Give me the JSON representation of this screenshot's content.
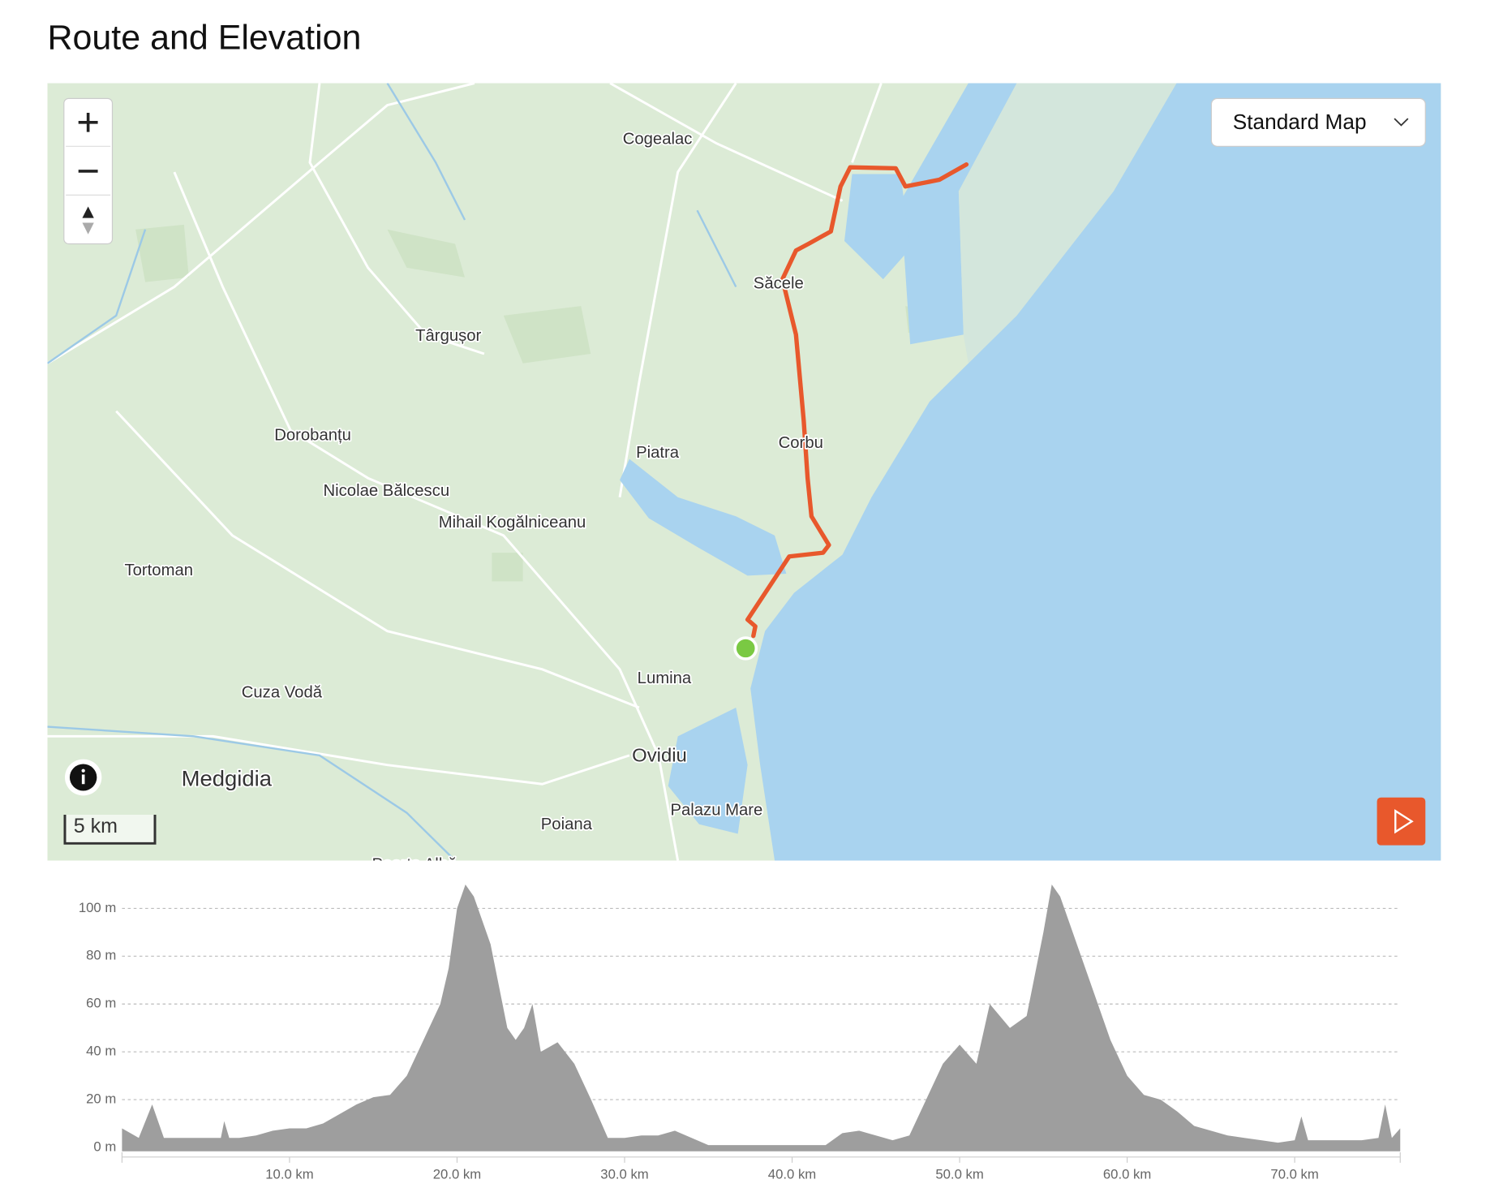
{
  "header": {
    "title": "Route and Elevation"
  },
  "map": {
    "style_selector": "Standard Map",
    "scale": "5 km",
    "places": [
      "Cogealac",
      "Săcele",
      "Târgușor",
      "Dorobanțu",
      "Piatra",
      "Corbu",
      "Nicolae Bălcescu",
      "Mihail Kogălniceanu",
      "Tortoman",
      "Lumina",
      "Cuza Vodă",
      "Ovidiu",
      "Medgidia",
      "Palazu Mare",
      "Poiana",
      "Poarta Albă"
    ]
  },
  "chart_data": {
    "type": "area",
    "color": "#9e9e9e",
    "x": [
      0,
      1,
      1.8,
      2.5,
      3,
      4,
      5,
      5.9,
      6.1,
      6.4,
      7,
      8,
      9,
      10,
      11,
      12,
      13,
      14,
      15,
      16,
      17,
      18,
      19,
      19.5,
      20,
      20.5,
      21,
      22,
      23,
      23.5,
      24,
      24.5,
      25,
      26,
      27,
      28,
      29,
      30,
      31,
      32,
      33,
      34,
      35,
      36,
      38,
      40,
      42,
      43,
      44,
      45,
      46,
      47,
      48,
      49,
      50,
      51,
      51.8,
      53,
      54,
      55,
      55.5,
      56,
      57,
      58,
      59,
      60,
      61,
      62,
      63,
      64,
      65,
      66,
      67,
      68,
      69,
      70,
      70.4,
      70.8,
      72,
      73,
      74,
      75,
      75.4,
      75.8,
      76.3
    ],
    "values": [
      8,
      4,
      18,
      4,
      4,
      4,
      4,
      4,
      11,
      4,
      4,
      5,
      7,
      8,
      8,
      10,
      14,
      18,
      21,
      22,
      30,
      45,
      60,
      75,
      100,
      110,
      105,
      85,
      50,
      45,
      50,
      60,
      40,
      44,
      35,
      20,
      4,
      4,
      5,
      5,
      7,
      4,
      1,
      1,
      1,
      1,
      1,
      6,
      7,
      5,
      3,
      5,
      20,
      35,
      43,
      35,
      60,
      50,
      55,
      90,
      110,
      105,
      85,
      65,
      45,
      30,
      22,
      20,
      15,
      9,
      7,
      5,
      4,
      3,
      2,
      3,
      13,
      3,
      3,
      3,
      3,
      4,
      18,
      4,
      8
    ],
    "xlim": [
      0,
      76.3
    ],
    "ylim": [
      0,
      110
    ],
    "xticks": [
      {
        "value": 10,
        "label": "10.0 km"
      },
      {
        "value": 20,
        "label": "20.0 km"
      },
      {
        "value": 30,
        "label": "30.0 km"
      },
      {
        "value": 40,
        "label": "40.0 km"
      },
      {
        "value": 50,
        "label": "50.0 km"
      },
      {
        "value": 60,
        "label": "60.0 km"
      },
      {
        "value": 70,
        "label": "70.0 km"
      }
    ],
    "yticks": [
      {
        "value": 0,
        "label": "0 m"
      },
      {
        "value": 20,
        "label": "20 m"
      },
      {
        "value": 40,
        "label": "40 m"
      },
      {
        "value": 60,
        "label": "60 m"
      },
      {
        "value": 80,
        "label": "80 m"
      },
      {
        "value": 100,
        "label": "100 m"
      }
    ],
    "grid": true
  }
}
